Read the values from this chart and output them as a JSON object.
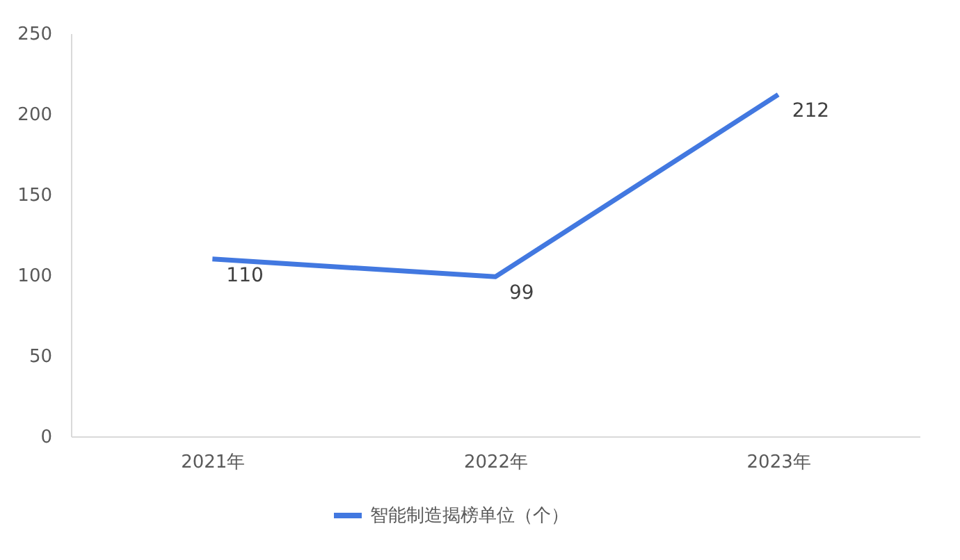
{
  "chart_data": {
    "type": "line",
    "categories": [
      "2021年",
      "2022年",
      "2023年"
    ],
    "series": [
      {
        "name": "智能制造揭榜单位（个）",
        "color": "#4278e0",
        "values": [
          110,
          99,
          212
        ]
      }
    ],
    "ylim": [
      0,
      250
    ],
    "yticks": [
      0,
      50,
      100,
      150,
      200,
      250
    ],
    "data_labels": true,
    "legend": "bottom",
    "line_style": "solid",
    "marker": "none"
  }
}
